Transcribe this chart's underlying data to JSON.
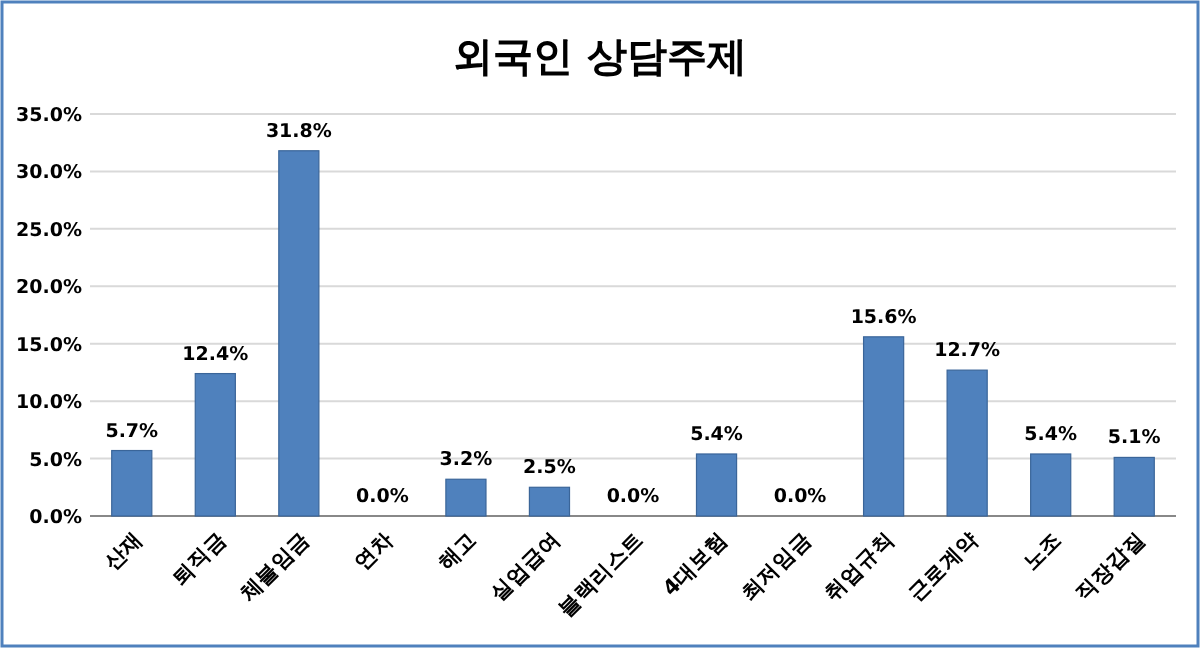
{
  "chart_data": {
    "type": "bar",
    "title": "외국인 상담주제",
    "categories": [
      "산재",
      "퇴직금",
      "체불임금",
      "연차",
      "해고",
      "실업급여",
      "블랙리스트",
      "4대보험",
      "최저임금",
      "취업규칙",
      "근로계약",
      "노조",
      "직장갑질"
    ],
    "values": [
      5.7,
      12.4,
      31.8,
      0,
      3.2,
      2.5,
      0,
      5.4,
      0,
      15.6,
      12.7,
      5.4,
      5.1
    ],
    "value_labels": [
      "5.7%",
      "12.4%",
      "31.8%",
      "0.0%",
      "3.2%",
      "2.5%",
      "0.0%",
      "5.4%",
      "0.0%",
      "15.6%",
      "12.7%",
      "5.4%",
      "5.1%"
    ],
    "color": "#4f81bd",
    "ylim": [
      0,
      35
    ],
    "yticks": [
      {
        "value": 0,
        "label": "0.0%"
      },
      {
        "value": 5,
        "label": "5.0%"
      },
      {
        "value": 10,
        "label": "10.0%"
      },
      {
        "value": 15,
        "label": "15.0%"
      },
      {
        "value": 20,
        "label": "20.0%"
      },
      {
        "value": 25,
        "label": "25.0%"
      },
      {
        "value": 30,
        "label": "30.0%"
      },
      {
        "value": 35,
        "label": "35.0%"
      }
    ],
    "grid": "y"
  }
}
